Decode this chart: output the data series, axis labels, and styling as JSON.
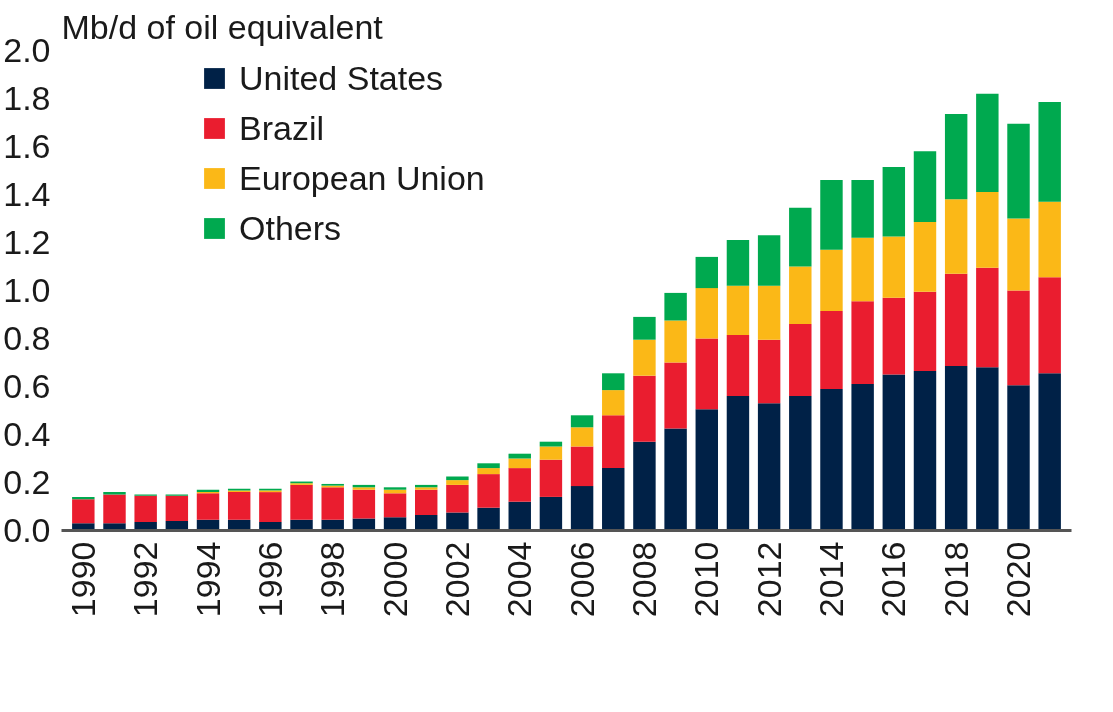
{
  "chart_data": {
    "type": "bar",
    "stacked": true,
    "ylabel": "Mb/d of oil equivalent",
    "categories": [
      "1990",
      null,
      "1992",
      null,
      "1994",
      null,
      "1996",
      null,
      "1998",
      null,
      "2000",
      null,
      "2002",
      null,
      "2004",
      null,
      "2006",
      null,
      "2008",
      null,
      "2010",
      null,
      "2012",
      null,
      "2014",
      null,
      "2016",
      null,
      "2018",
      null,
      "2020",
      null
    ],
    "ylim": [
      0,
      2.0
    ],
    "yticks": [
      {
        "value": 0,
        "label": "0.0"
      },
      0.2,
      0.4,
      0.6,
      0.8,
      {
        "value": 1,
        "label": "1.0"
      },
      1.2,
      1.4,
      1.6,
      1.8,
      {
        "value": 2,
        "label": "2.0"
      }
    ],
    "grid": false,
    "legend": "top left",
    "series": [
      {
        "name": "United States",
        "color": "#002147",
        "values": [
          0.03,
          0.03,
          0.035,
          0.04,
          0.045,
          0.045,
          0.035,
          0.045,
          0.045,
          0.05,
          0.055,
          0.065,
          0.075,
          0.095,
          0.12,
          0.14,
          0.185,
          0.26,
          0.37,
          0.425,
          0.505,
          0.56,
          0.53,
          0.56,
          0.59,
          0.61,
          0.65,
          0.665,
          0.685,
          0.68,
          0.605,
          0.655
        ]
      },
      {
        "name": "Brazil",
        "color": "#ea1d2f",
        "values": [
          0.1,
          0.12,
          0.11,
          0.105,
          0.11,
          0.115,
          0.125,
          0.145,
          0.135,
          0.12,
          0.1,
          0.105,
          0.115,
          0.14,
          0.14,
          0.155,
          0.165,
          0.22,
          0.275,
          0.275,
          0.295,
          0.255,
          0.265,
          0.3,
          0.325,
          0.345,
          0.32,
          0.33,
          0.385,
          0.415,
          0.395,
          0.4
        ]
      },
      {
        "name": "European Union",
        "color": "#fbb817",
        "values": [
          0,
          0,
          0,
          0,
          0.005,
          0.007,
          0.007,
          0.007,
          0.007,
          0.01,
          0.015,
          0.01,
          0.02,
          0.025,
          0.04,
          0.055,
          0.08,
          0.105,
          0.15,
          0.175,
          0.21,
          0.205,
          0.225,
          0.24,
          0.255,
          0.265,
          0.255,
          0.29,
          0.31,
          0.315,
          0.3,
          0.315
        ]
      },
      {
        "name": "Others",
        "color": "#00a94f",
        "values": [
          0.01,
          0.01,
          0.005,
          0.005,
          0.01,
          0.007,
          0.007,
          0.007,
          0.007,
          0.01,
          0.01,
          0.01,
          0.015,
          0.02,
          0.02,
          0.02,
          0.05,
          0.07,
          0.095,
          0.115,
          0.13,
          0.19,
          0.21,
          0.245,
          0.29,
          0.24,
          0.29,
          0.295,
          0.355,
          0.41,
          0.395,
          0.415
        ]
      }
    ]
  }
}
